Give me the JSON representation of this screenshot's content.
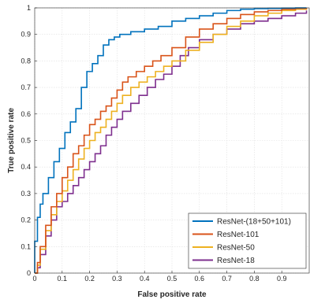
{
  "chart_data": {
    "type": "line",
    "title": "",
    "xlabel": "False positive rate",
    "ylabel": "True positive rate",
    "xlim": [
      0,
      1
    ],
    "ylim": [
      0,
      1
    ],
    "x_ticks": [
      "0",
      "0.1",
      "0.2",
      "0.3",
      "0.4",
      "0.5",
      "0.6",
      "0.7",
      "0.8",
      "0.9"
    ],
    "y_ticks": [
      "0",
      "0.1",
      "0.2",
      "0.3",
      "0.4",
      "0.5",
      "0.6",
      "0.7",
      "0.8",
      "0.9",
      "1"
    ],
    "grid": true,
    "legend_position": "bottom-right",
    "series": [
      {
        "name": "ResNet-(18+50+101)",
        "color": "#0072BD",
        "x": [
          0,
          0,
          0.01,
          0.02,
          0.03,
          0.05,
          0.07,
          0.09,
          0.11,
          0.13,
          0.15,
          0.17,
          0.19,
          0.21,
          0.23,
          0.25,
          0.27,
          0.29,
          0.31,
          0.35,
          0.4,
          0.45,
          0.5,
          0.55,
          0.6,
          0.65,
          0.7,
          0.75,
          0.8,
          0.85,
          0.9,
          0.95,
          0.99
        ],
        "y": [
          0,
          0.12,
          0.21,
          0.26,
          0.3,
          0.36,
          0.42,
          0.47,
          0.53,
          0.57,
          0.62,
          0.7,
          0.76,
          0.79,
          0.82,
          0.86,
          0.88,
          0.89,
          0.9,
          0.91,
          0.92,
          0.93,
          0.95,
          0.96,
          0.97,
          0.98,
          0.99,
          0.995,
          0.997,
          0.998,
          0.999,
          1.0,
          1.0
        ]
      },
      {
        "name": "ResNet-101",
        "color": "#D95319",
        "x": [
          0,
          0.01,
          0.02,
          0.04,
          0.06,
          0.08,
          0.1,
          0.12,
          0.14,
          0.16,
          0.18,
          0.2,
          0.22,
          0.24,
          0.26,
          0.28,
          0.3,
          0.32,
          0.34,
          0.37,
          0.4,
          0.43,
          0.46,
          0.5,
          0.55,
          0.6,
          0.65,
          0.7,
          0.75,
          0.8,
          0.85,
          0.9,
          0.95,
          0.99
        ],
        "y": [
          0,
          0.04,
          0.1,
          0.18,
          0.25,
          0.3,
          0.36,
          0.4,
          0.45,
          0.48,
          0.52,
          0.56,
          0.58,
          0.61,
          0.63,
          0.66,
          0.69,
          0.72,
          0.74,
          0.76,
          0.78,
          0.8,
          0.82,
          0.85,
          0.89,
          0.92,
          0.94,
          0.96,
          0.975,
          0.985,
          0.99,
          0.995,
          0.998,
          1.0
        ]
      },
      {
        "name": "ResNet-50",
        "color": "#EDB120",
        "x": [
          0,
          0.01,
          0.02,
          0.04,
          0.06,
          0.08,
          0.1,
          0.12,
          0.14,
          0.16,
          0.18,
          0.2,
          0.22,
          0.24,
          0.26,
          0.28,
          0.3,
          0.32,
          0.35,
          0.38,
          0.41,
          0.44,
          0.47,
          0.5,
          0.55,
          0.6,
          0.65,
          0.7,
          0.75,
          0.8,
          0.85,
          0.9,
          0.95,
          0.99
        ],
        "y": [
          0,
          0.03,
          0.09,
          0.16,
          0.22,
          0.27,
          0.31,
          0.35,
          0.39,
          0.43,
          0.47,
          0.5,
          0.53,
          0.55,
          0.58,
          0.61,
          0.64,
          0.67,
          0.7,
          0.72,
          0.74,
          0.76,
          0.78,
          0.8,
          0.84,
          0.87,
          0.9,
          0.93,
          0.95,
          0.97,
          0.98,
          0.99,
          0.995,
          0.998
        ]
      },
      {
        "name": "ResNet-18",
        "color": "#7E2F8E",
        "x": [
          0,
          0.01,
          0.02,
          0.04,
          0.06,
          0.08,
          0.1,
          0.12,
          0.14,
          0.16,
          0.18,
          0.2,
          0.22,
          0.24,
          0.26,
          0.28,
          0.3,
          0.32,
          0.35,
          0.38,
          0.41,
          0.44,
          0.47,
          0.5,
          0.53,
          0.56,
          0.6,
          0.65,
          0.7,
          0.75,
          0.8,
          0.85,
          0.9,
          0.95,
          0.99
        ],
        "y": [
          0,
          0.02,
          0.07,
          0.14,
          0.2,
          0.25,
          0.27,
          0.3,
          0.33,
          0.36,
          0.39,
          0.42,
          0.45,
          0.48,
          0.52,
          0.55,
          0.58,
          0.61,
          0.64,
          0.67,
          0.7,
          0.73,
          0.75,
          0.78,
          0.82,
          0.85,
          0.88,
          0.9,
          0.92,
          0.94,
          0.95,
          0.96,
          0.97,
          0.98,
          0.99
        ]
      }
    ]
  }
}
